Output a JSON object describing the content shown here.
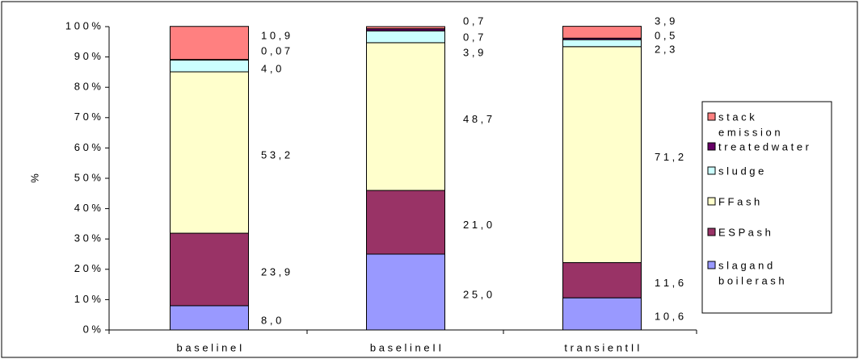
{
  "chart_data": {
    "type": "bar",
    "stacked": "percent",
    "ylabel": "%",
    "ylim": [
      0,
      100
    ],
    "yticks": [
      "0 %",
      "10 %",
      "20 %",
      "30 %",
      "40 %",
      "50 %",
      "60 %",
      "70 %",
      "80 %",
      "90 %",
      "100 %"
    ],
    "categories": [
      "baseline I",
      "baseline II",
      "transient II"
    ],
    "legend_position": "right",
    "grid": false,
    "series": [
      {
        "name": "slag and boiler ash",
        "color": "#9999ff",
        "values": [
          8.0,
          25.0,
          10.6
        ],
        "labels": [
          "8 , 0",
          "2 5 , 0",
          "1 0 , 6"
        ]
      },
      {
        "name": "ESP ash",
        "color": "#993366",
        "values": [
          23.9,
          21.0,
          11.6
        ],
        "labels": [
          "2 3 , 9",
          "2 1 , 0",
          "1 1 , 6"
        ]
      },
      {
        "name": "FFash",
        "color": "#ffffcc",
        "values": [
          53.2,
          48.7,
          71.2
        ],
        "labels": [
          "5 3 , 2",
          "4 8 , 7",
          "7 1 , 2"
        ]
      },
      {
        "name": "sludge",
        "color": "#ccffff",
        "values": [
          4.0,
          3.9,
          2.3
        ],
        "labels": [
          "4 , 0",
          "3 , 9",
          "2 , 3"
        ]
      },
      {
        "name": "treated water",
        "color": "#660066",
        "values": [
          0.07,
          0.7,
          0.5
        ],
        "labels": [
          "0 , 0 7",
          "0 , 7",
          "0 , 5"
        ]
      },
      {
        "name": "stack emission",
        "color": "#ff8080",
        "values": [
          10.9,
          0.7,
          3.9
        ],
        "labels": [
          "1 0 , 9",
          "0 , 7",
          "3 , 9"
        ]
      }
    ],
    "legend_entries": [
      {
        "lines": [
          "s t a c k",
          "e m i s s i o n"
        ],
        "color": "#ff8080"
      },
      {
        "lines": [
          "t r e a t e d  w a t e r"
        ],
        "color": "#660066"
      },
      {
        "lines": [
          "s l u d g e"
        ],
        "color": "#ccffff"
      },
      {
        "lines": [
          "F F a s h"
        ],
        "color": "#ffffcc"
      },
      {
        "lines": [
          "E S P  a s h"
        ],
        "color": "#993366"
      },
      {
        "lines": [
          "s l a g  a n d",
          "b o i l e r  a s h"
        ],
        "color": "#9999ff"
      }
    ],
    "category_labels": [
      "b a s e l i n e  I",
      "b a s e l i n e  I I",
      "t r a n s i e n t  I I"
    ]
  }
}
